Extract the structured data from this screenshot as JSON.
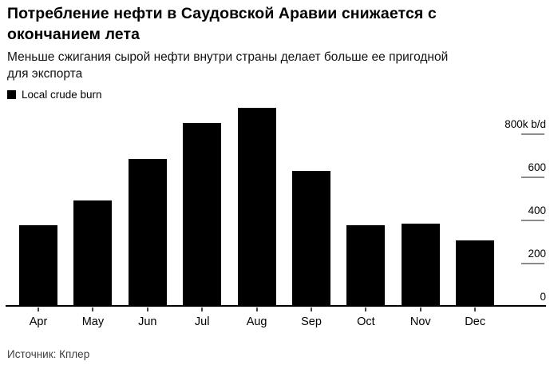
{
  "header": {
    "title": "Потребление нефти в Саудовской Аравии снижается с окончанием лета",
    "title_lines": [
      "Потребление нефти в Саудовской Аравии снижается с",
      "окончанием лета"
    ],
    "subtitle": "Меньше сжигания сырой нефти внутри страны делает больше ее пригодной для экспорта",
    "subtitle_lines": [
      "Меньше сжигания сырой нефти внутри страны делает больше ее пригодной",
      "для экспорта"
    ]
  },
  "legend": {
    "label": "Local crude burn",
    "swatch_color": "#000000"
  },
  "source": "Источник: Кплер",
  "chart_data": {
    "type": "bar",
    "title": "Потребление нефти в Саудовской Аравии снижается с окончанием лета",
    "subtitle": "Меньше сжигания сырой нефти внутри страны делает больше ее пригодной для экспорта",
    "series_name": "Local crude burn",
    "categories": [
      "Apr",
      "May",
      "Jun",
      "Jul",
      "Aug",
      "Sep",
      "Oct",
      "Nov",
      "Dec"
    ],
    "values": [
      375,
      490,
      680,
      850,
      920,
      625,
      375,
      380,
      305
    ],
    "unit": "k b/d",
    "ylabel": "",
    "xlabel": "",
    "ylim": [
      0,
      940
    ],
    "yticks": [
      0,
      200,
      400,
      600,
      800
    ],
    "ytick_labels": [
      "0",
      "200",
      "400",
      "600",
      "800k b/d"
    ],
    "y_axis_position": "right",
    "legend_position": "top-left",
    "grid": false,
    "bar_color": "#000000",
    "axis_color": "#000000",
    "tick_color": "#8c8c8c"
  }
}
